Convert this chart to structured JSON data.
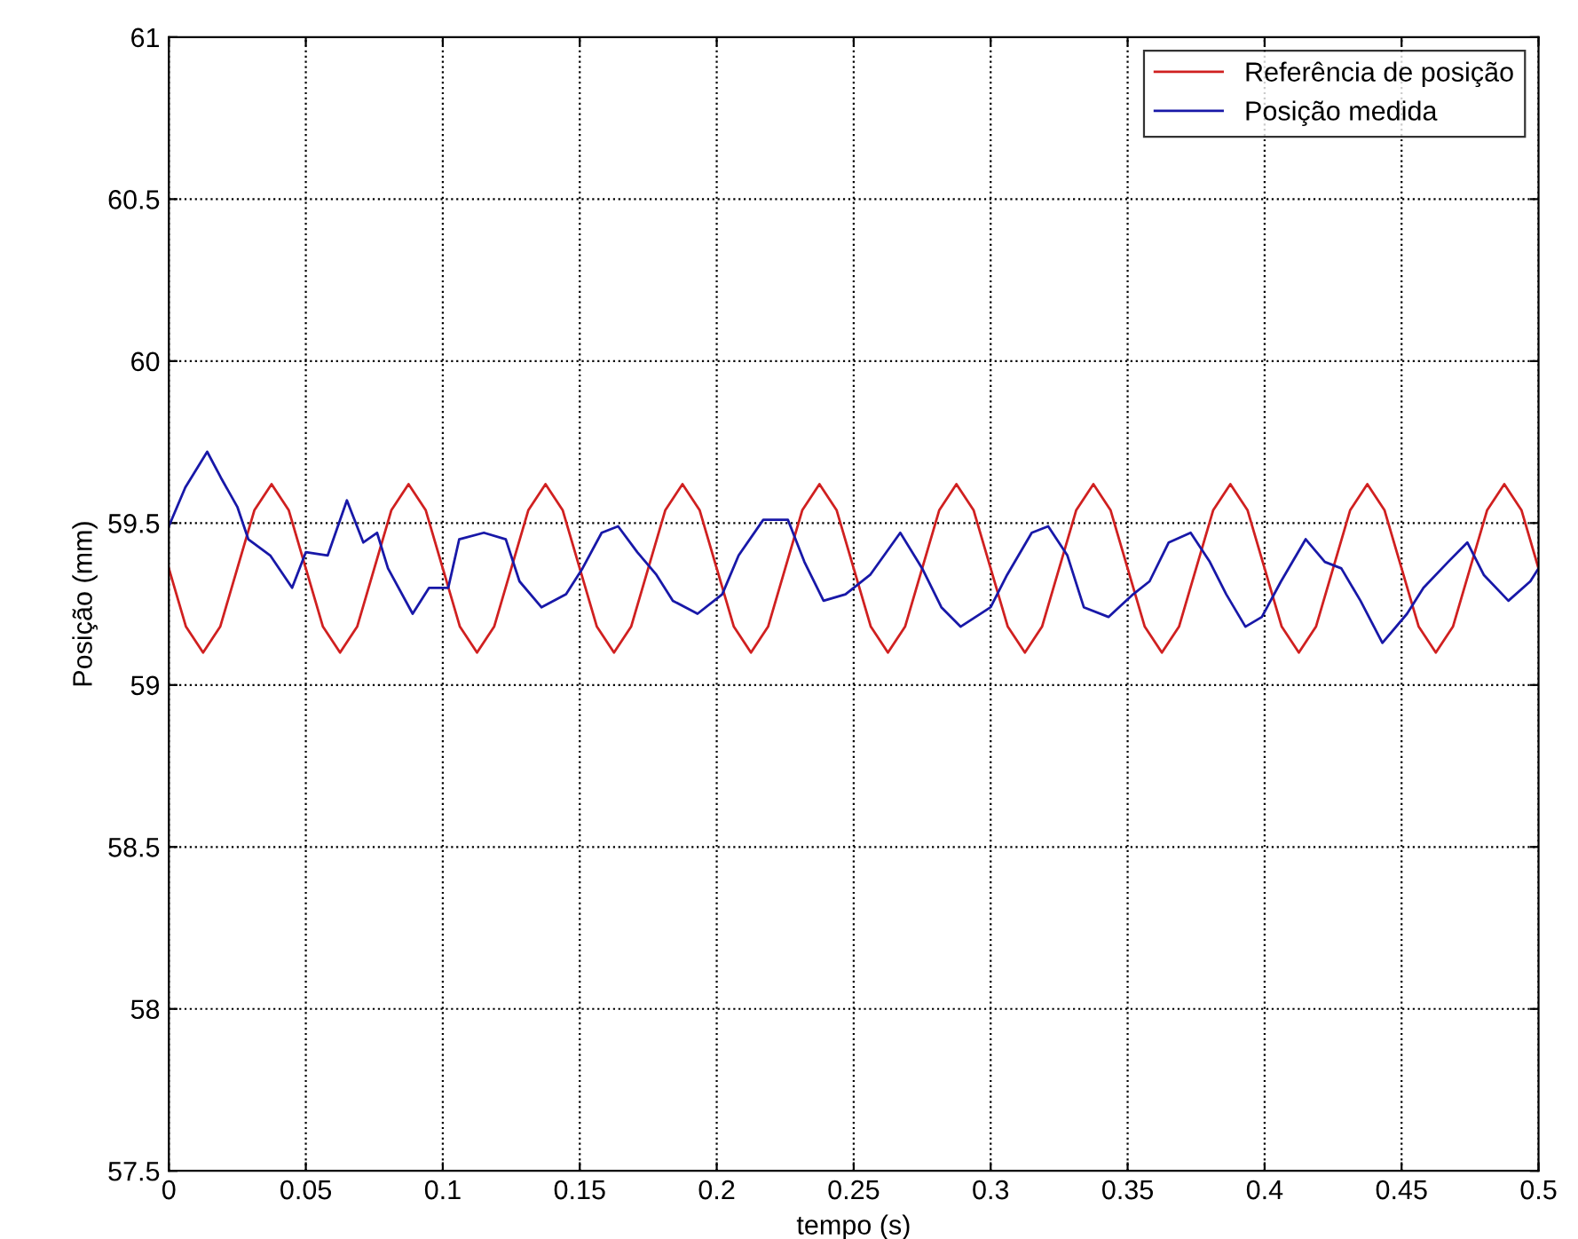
{
  "chart_data": {
    "type": "line",
    "xlabel": "tempo (s)",
    "ylabel": "Posição (mm)",
    "xlim": [
      0,
      0.5
    ],
    "ylim": [
      57.5,
      61
    ],
    "xticks": [
      0,
      0.05,
      0.1,
      0.15,
      0.2,
      0.25,
      0.3,
      0.35,
      0.4,
      0.45,
      0.5
    ],
    "yticks": [
      57.5,
      58,
      58.5,
      59,
      59.5,
      60,
      60.5,
      61
    ],
    "grid": true,
    "legend": "top right",
    "line_style": "solid",
    "marker": "none",
    "series": [
      {
        "name": "Referência de posição",
        "color": "#d02020",
        "x": [
          0,
          0.00625,
          0.0125,
          0.01875,
          0.025,
          0.03125,
          0.0375,
          0.04375,
          0.05,
          0.05625,
          0.0625,
          0.06875,
          0.075,
          0.08125,
          0.0875,
          0.09375,
          0.1,
          0.10625,
          0.1125,
          0.11875,
          0.125,
          0.13125,
          0.1375,
          0.14375,
          0.15,
          0.15625,
          0.1625,
          0.16875,
          0.175,
          0.18125,
          0.1875,
          0.19375,
          0.2,
          0.20625,
          0.2125,
          0.21875,
          0.225,
          0.23125,
          0.2375,
          0.24375,
          0.25,
          0.25625,
          0.2625,
          0.26875,
          0.275,
          0.28125,
          0.2875,
          0.29375,
          0.3,
          0.30625,
          0.3125,
          0.31875,
          0.325,
          0.33125,
          0.3375,
          0.34375,
          0.35,
          0.35625,
          0.3625,
          0.36875,
          0.375,
          0.38125,
          0.3875,
          0.39375,
          0.4,
          0.40625,
          0.4125,
          0.41875,
          0.425,
          0.43125,
          0.4375,
          0.44375,
          0.45,
          0.45625,
          0.4625,
          0.46875,
          0.475,
          0.48125,
          0.4875,
          0.49375,
          0.5
        ],
        "values": [
          59.36,
          59.18,
          59.1,
          59.18,
          59.36,
          59.54,
          59.62,
          59.54,
          59.36,
          59.18,
          59.1,
          59.18,
          59.36,
          59.54,
          59.62,
          59.54,
          59.36,
          59.18,
          59.1,
          59.18,
          59.36,
          59.54,
          59.62,
          59.54,
          59.36,
          59.18,
          59.1,
          59.18,
          59.36,
          59.54,
          59.62,
          59.54,
          59.36,
          59.18,
          59.1,
          59.18,
          59.36,
          59.54,
          59.62,
          59.54,
          59.36,
          59.18,
          59.1,
          59.18,
          59.36,
          59.54,
          59.62,
          59.54,
          59.36,
          59.18,
          59.1,
          59.18,
          59.36,
          59.54,
          59.62,
          59.54,
          59.36,
          59.18,
          59.1,
          59.18,
          59.36,
          59.54,
          59.62,
          59.54,
          59.36,
          59.18,
          59.1,
          59.18,
          59.36,
          59.54,
          59.62,
          59.54,
          59.36,
          59.18,
          59.1,
          59.18,
          59.36,
          59.54,
          59.62,
          59.54,
          59.36
        ]
      },
      {
        "name": "Posição medida",
        "color": "#1818a8",
        "x": [
          0,
          0.006,
          0.014,
          0.019,
          0.025,
          0.029,
          0.037,
          0.045,
          0.05,
          0.058,
          0.065,
          0.071,
          0.076,
          0.08,
          0.089,
          0.095,
          0.102,
          0.106,
          0.115,
          0.123,
          0.128,
          0.136,
          0.145,
          0.151,
          0.158,
          0.164,
          0.171,
          0.178,
          0.184,
          0.193,
          0.202,
          0.208,
          0.217,
          0.226,
          0.232,
          0.239,
          0.247,
          0.256,
          0.267,
          0.275,
          0.282,
          0.289,
          0.3,
          0.306,
          0.315,
          0.321,
          0.328,
          0.334,
          0.343,
          0.352,
          0.358,
          0.365,
          0.373,
          0.38,
          0.386,
          0.393,
          0.399,
          0.406,
          0.415,
          0.422,
          0.428,
          0.435,
          0.443,
          0.452,
          0.458,
          0.467,
          0.474,
          0.48,
          0.489,
          0.497,
          0.5
        ],
        "values": [
          59.49,
          59.61,
          59.72,
          59.64,
          59.55,
          59.45,
          59.4,
          59.3,
          59.41,
          59.4,
          59.57,
          59.44,
          59.47,
          59.36,
          59.22,
          59.3,
          59.3,
          59.45,
          59.47,
          59.45,
          59.32,
          59.24,
          59.28,
          59.36,
          59.47,
          59.49,
          59.41,
          59.34,
          59.26,
          59.22,
          59.28,
          59.4,
          59.51,
          59.51,
          59.38,
          59.26,
          59.28,
          59.34,
          59.47,
          59.36,
          59.24,
          59.18,
          59.24,
          59.34,
          59.47,
          59.49,
          59.4,
          59.24,
          59.21,
          59.28,
          59.32,
          59.44,
          59.47,
          59.38,
          59.28,
          59.18,
          59.21,
          59.32,
          59.45,
          59.38,
          59.36,
          59.26,
          59.13,
          59.22,
          59.3,
          59.38,
          59.44,
          59.34,
          59.26,
          59.32,
          59.36
        ]
      }
    ]
  }
}
